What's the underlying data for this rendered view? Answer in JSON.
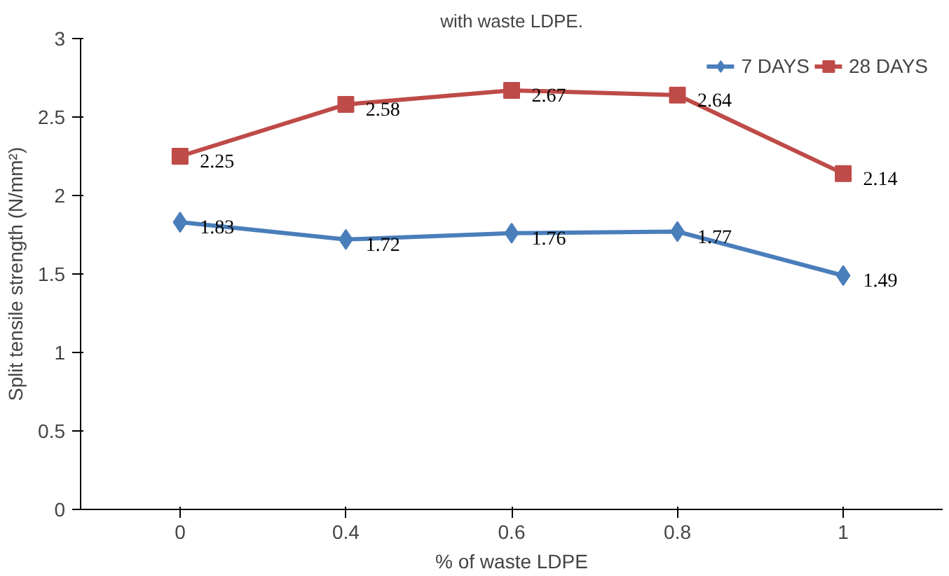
{
  "chart_data": {
    "type": "line",
    "title": "with waste LDPE.",
    "xlabel": "% of waste LDPE",
    "ylabel": "Split tensile strength (N/mm²)",
    "categories": [
      "0",
      "0.4",
      "0.6",
      "0.8",
      "1"
    ],
    "series": [
      {
        "name": "7 DAYS",
        "color": "#4a7ebb",
        "values": [
          1.83,
          1.72,
          1.76,
          1.77,
          1.49
        ],
        "marker": "diamond"
      },
      {
        "name": "28 DAYS",
        "color": "#be4b48",
        "values": [
          2.25,
          2.58,
          2.67,
          2.64,
          2.14
        ],
        "marker": "square"
      }
    ],
    "ylim": [
      0,
      3
    ],
    "yticks": [
      0,
      0.5,
      1,
      1.5,
      2,
      2.5,
      3
    ],
    "legend": "top right",
    "data_labels": true,
    "grid": false,
    "line_style": "solid"
  }
}
